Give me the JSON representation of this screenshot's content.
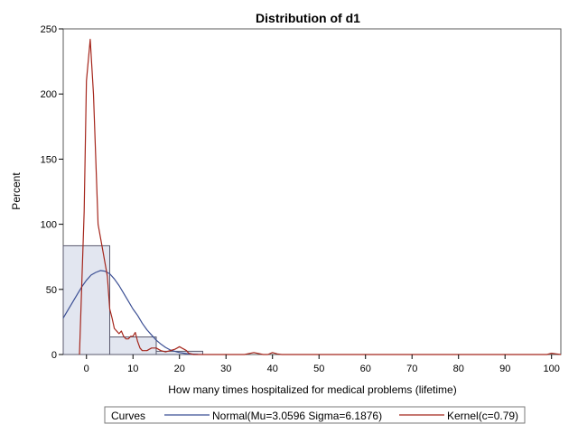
{
  "chart_data": {
    "type": "bar",
    "title": "Distribution of d1",
    "xlabel": "How many times hospitalized for medical problems (lifetime)",
    "ylabel": "Percent",
    "xlim": [
      -5,
      102
    ],
    "ylim": [
      0,
      250
    ],
    "x_ticks": [
      0,
      10,
      20,
      30,
      40,
      50,
      60,
      70,
      80,
      90,
      100
    ],
    "y_ticks": [
      0,
      50,
      100,
      150,
      200,
      250
    ],
    "grid": false,
    "legend_position": "bottom",
    "histogram": {
      "bin_starts": [
        -5,
        5,
        15
      ],
      "bin_ends": [
        5,
        15,
        25
      ],
      "percent": [
        83.5,
        13.5,
        2.5
      ],
      "fill_color": "#e2e6f0",
      "edge_color": "#5a5a6e"
    },
    "legend": {
      "title": "Curves",
      "entries": [
        {
          "label": "Normal(Mu=3.0596 Sigma=6.1876)",
          "color": "#3b4f94"
        },
        {
          "label": "Kernel(c=0.79)",
          "color": "#a5261c"
        }
      ]
    },
    "series": [
      {
        "name": "Normal(Mu=3.0596 Sigma=6.1876)",
        "color": "#3b4f94",
        "x": [
          -5,
          -4,
          -3,
          -2,
          -1,
          0,
          1,
          2,
          3,
          4,
          5,
          6,
          7,
          8,
          9,
          10,
          11,
          12,
          13,
          14,
          15,
          16,
          17,
          18,
          19,
          20,
          21,
          22,
          23,
          24
        ],
        "y": [
          28,
          34,
          40,
          46,
          52,
          57,
          61,
          63,
          64.5,
          64,
          62,
          58,
          53,
          47,
          41,
          35,
          30,
          24,
          19,
          15,
          11,
          8,
          5.5,
          3.5,
          2.5,
          1.5,
          1,
          0.5,
          0.3,
          0.1
        ]
      },
      {
        "name": "Kernel(c=0.79)",
        "color": "#a5261c",
        "x": [
          -1.5,
          -0.5,
          0,
          0.8,
          1.5,
          2.5,
          3.5,
          4.5,
          5,
          5.5,
          6,
          7,
          7.5,
          8,
          8.5,
          9,
          9.5,
          10,
          10.5,
          11,
          11.5,
          12,
          13,
          13.5,
          14,
          15,
          16,
          17,
          18,
          19,
          19.5,
          20,
          20.5,
          21,
          21.5,
          22,
          23,
          34,
          36,
          38,
          39,
          40,
          41,
          42,
          99,
          100,
          101,
          102
        ],
        "y": [
          0,
          110,
          210,
          242,
          200,
          100,
          80,
          60,
          35,
          28,
          20,
          16,
          18,
          14,
          12,
          12,
          14,
          14,
          17,
          10,
          5,
          3,
          3,
          4,
          5,
          5,
          3,
          2,
          3,
          4,
          5,
          6,
          5,
          4,
          3,
          1,
          0,
          0,
          1.5,
          0,
          0,
          1.5,
          0.5,
          0,
          0,
          1,
          0.5,
          0
        ]
      }
    ]
  }
}
